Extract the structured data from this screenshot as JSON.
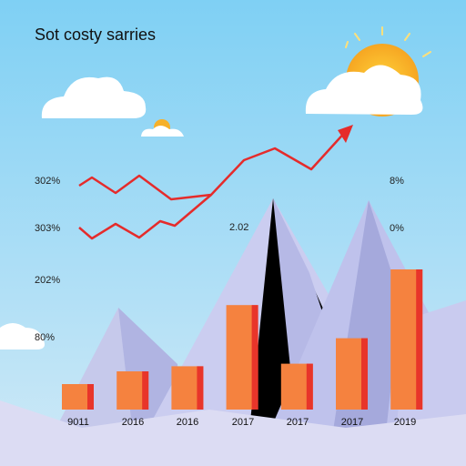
{
  "chart_data": {
    "type": "bar",
    "title": "Sot costy sarries",
    "categories": [
      "9011",
      "2016",
      "2016",
      "2017",
      "2017",
      "2017",
      "2019"
    ],
    "values": [
      10,
      15,
      17,
      41,
      18,
      28,
      55
    ],
    "ylim": [
      0,
      100
    ],
    "left_axis_labels": [
      "302%",
      "303%",
      "202%",
      "80%"
    ],
    "right_axis_labels": [
      "8%",
      "0%"
    ],
    "inner_label": "2.02",
    "colors": {
      "bar": "#f5823f",
      "bar_edge": "#e8352a",
      "line": "#e52b2b"
    }
  }
}
